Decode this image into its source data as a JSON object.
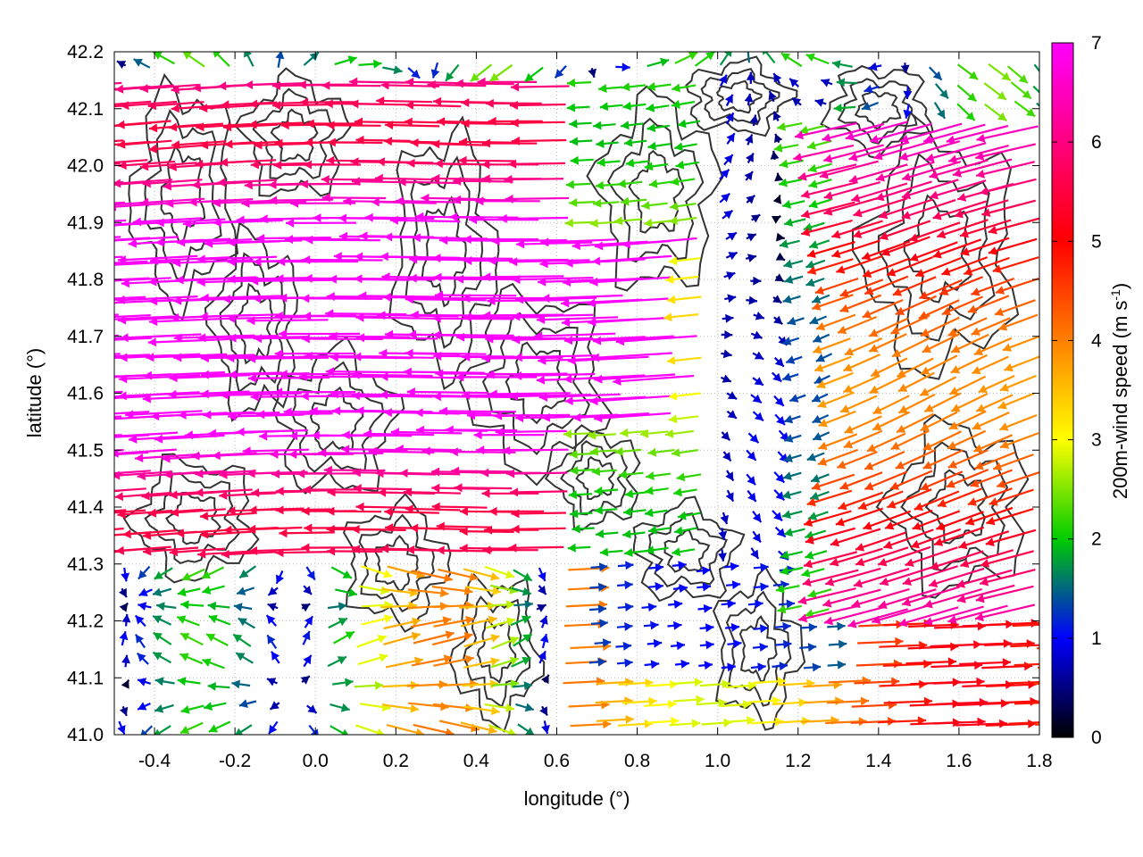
{
  "chart_data": {
    "type": "vector-field",
    "xlabel": "longitude (°)",
    "ylabel": "latitude (°)",
    "xlim": [
      -0.5,
      1.8
    ],
    "ylim": [
      41.0,
      42.2
    ],
    "xticks": [
      "-0.4",
      "-0.2",
      "0.0",
      "0.2",
      "0.4",
      "0.6",
      "0.8",
      "1.0",
      "1.2",
      "1.4",
      "1.6",
      "1.8"
    ],
    "yticks": [
      "41.0",
      "41.1",
      "41.2",
      "41.3",
      "41.4",
      "41.5",
      "41.6",
      "41.7",
      "41.8",
      "41.9",
      "42.0",
      "42.1",
      "42.2"
    ],
    "grid": true,
    "colorbar": {
      "label_main": "200m-wind speed (m s",
      "label_sup": "-1",
      "label_close": ")",
      "range": [
        0,
        7
      ],
      "ticks": [
        "0",
        "1",
        "2",
        "3",
        "4",
        "5",
        "6",
        "7"
      ],
      "colormap": [
        "#000000",
        "#0000ff",
        "#00cc00",
        "#ffff00",
        "#ff8000",
        "#ff0000",
        "#ff00ff"
      ]
    },
    "contour_color": "#333333",
    "wind_field_description": "Strong westward flow (6-7 m/s) over the western and central part of the domain between 41.3 and 42.1 degrees latitude; weaker, eastward flow (2-5 m/s) in the south-east; weak variable winds (0-2 m/s) near 0.6-1.3 longitude."
  }
}
